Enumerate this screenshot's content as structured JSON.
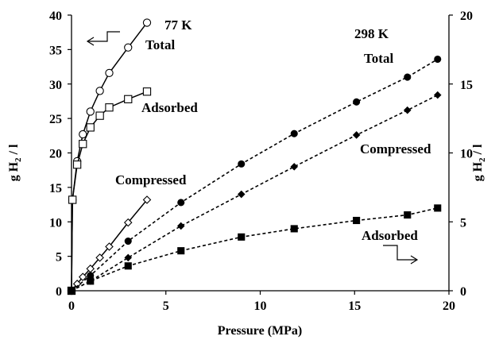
{
  "chart_data": {
    "type": "line",
    "xlabel": "Pressure (MPa)",
    "ylabel_left": "g H",
    "ylabel_left_sub": "2",
    "ylabel_left_tail": " / l",
    "ylabel_right": "g H",
    "ylabel_right_sub": "2",
    "ylabel_right_tail": " / l",
    "xlim": [
      0,
      20
    ],
    "ylim_left": [
      0,
      40
    ],
    "ylim_right": [
      0,
      20
    ],
    "x_ticks": [
      "0",
      "5",
      "10",
      "15",
      "20"
    ],
    "y_ticks_left": [
      "0",
      "5",
      "10",
      "15",
      "20",
      "25",
      "30",
      "35",
      "40"
    ],
    "y_ticks_right": [
      "0",
      "5",
      "10",
      "15",
      "20"
    ],
    "annotations": {
      "temp_77": "77 K",
      "temp_298": "298 K",
      "total_77": "Total",
      "adsorbed_77": "Adsorbed",
      "compressed_77": "Compressed",
      "total_298": "Total",
      "compressed_298": "Compressed",
      "adsorbed_298": "Adsorbed"
    },
    "series": [
      {
        "group": "77K",
        "role": "Total",
        "axis": "left",
        "marker": "circle-open",
        "line": "solid",
        "x": [
          0,
          0.05,
          0.3,
          0.6,
          1.0,
          1.5,
          2.0,
          3.0,
          4.0
        ],
        "y": [
          0,
          13.2,
          18.8,
          22.7,
          26.0,
          29.0,
          31.6,
          35.3,
          38.9
        ]
      },
      {
        "group": "77K",
        "role": "Adsorbed",
        "axis": "left",
        "marker": "square-open",
        "line": "solid",
        "x": [
          0,
          0.05,
          0.3,
          0.6,
          1.0,
          1.5,
          2.0,
          3.0,
          4.0
        ],
        "y": [
          0,
          13.2,
          18.3,
          21.3,
          23.7,
          25.4,
          26.6,
          27.8,
          28.9
        ]
      },
      {
        "group": "77K",
        "role": "Compressed",
        "axis": "left",
        "marker": "diamond-open",
        "line": "solid",
        "x": [
          0,
          0.3,
          0.6,
          1.0,
          1.5,
          2.0,
          3.0,
          4.0
        ],
        "y": [
          0,
          1.0,
          2.0,
          3.2,
          4.8,
          6.4,
          9.9,
          13.2
        ]
      },
      {
        "group": "298K",
        "role": "Total",
        "axis": "right",
        "marker": "circle-filled",
        "line": "dashed",
        "x": [
          0,
          1.0,
          3.0,
          5.8,
          9.0,
          11.8,
          15.1,
          17.8,
          19.4
        ],
        "y": [
          0,
          1.1,
          3.6,
          6.4,
          9.2,
          11.4,
          13.7,
          15.5,
          16.8
        ]
      },
      {
        "group": "298K",
        "role": "Compressed",
        "axis": "right",
        "marker": "diamond-filled",
        "line": "dashed",
        "x": [
          0,
          1.0,
          3.0,
          5.8,
          9.0,
          11.8,
          15.1,
          17.8,
          19.4
        ],
        "y": [
          0,
          0.7,
          2.4,
          4.7,
          7.0,
          9.0,
          11.3,
          13.1,
          14.2
        ]
      },
      {
        "group": "298K",
        "role": "Adsorbed",
        "axis": "right",
        "marker": "square-filled",
        "line": "dashed",
        "x": [
          0,
          1.0,
          3.0,
          5.8,
          9.0,
          11.8,
          15.1,
          17.8,
          19.4
        ],
        "y": [
          0,
          0.7,
          1.8,
          2.9,
          3.9,
          4.5,
          5.1,
          5.5,
          6.0
        ]
      }
    ]
  }
}
